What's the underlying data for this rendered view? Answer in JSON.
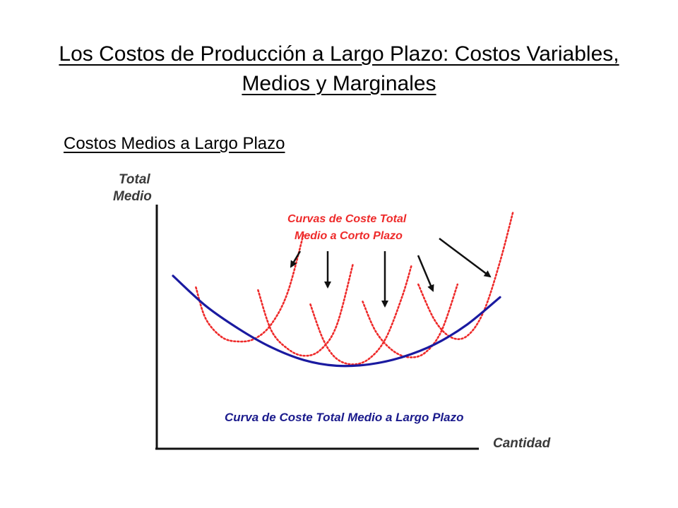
{
  "title": "Los Costos de Producción a Largo Plazo: Costos Variables, Medios y Marginales",
  "subtitle": "Costos Medios a Largo Plazo",
  "chart_data": {
    "type": "line",
    "ylabel_lines": [
      "Total",
      "Medio"
    ],
    "xlabel": "Cantidad",
    "short_run_label_lines": [
      "Curvas de Coste Total",
      "Medio a Corto Plazo"
    ],
    "long_run_label": "Curva de Coste Total Medio a Largo Plazo",
    "series": [
      {
        "name": "Curva de Coste Total Medio a Largo Plazo",
        "style": "solid",
        "color": "#1a1aa0",
        "x": [
          0,
          1,
          2,
          3,
          4,
          5,
          6,
          7,
          8,
          9,
          10
        ],
        "y": [
          9,
          6.9,
          5.3,
          4.0,
          3.1,
          2.7,
          2.8,
          3.3,
          4.2,
          5.6,
          7.5
        ]
      },
      {
        "name": "Curvas de Coste Total Medio a Corto Plazo",
        "style": "dotted",
        "color": "#ee2a2a",
        "curves": [
          {
            "x": [
              0.7,
              1.0,
              1.5,
              2.0,
              2.5,
              3.0,
              3.5,
              4.0
            ],
            "y": [
              8.2,
              6.0,
              4.7,
              4.4,
              4.6,
              5.6,
              7.8,
              12.0
            ]
          },
          {
            "x": [
              2.6,
              3.0,
              3.5,
              4.0,
              4.5,
              5.0,
              5.5
            ],
            "y": [
              8.0,
              5.2,
              3.9,
              3.4,
              3.8,
              5.5,
              9.8
            ]
          },
          {
            "x": [
              4.2,
              4.6,
              5.0,
              5.5,
              6.0,
              6.5,
              7.0,
              7.3
            ],
            "y": [
              7.0,
              4.5,
              3.2,
              2.8,
              3.2,
              4.6,
              7.5,
              9.8
            ]
          },
          {
            "x": [
              5.8,
              6.2,
              6.7,
              7.2,
              7.7,
              8.2,
              8.7
            ],
            "y": [
              7.2,
              5.1,
              3.8,
              3.3,
              3.6,
              5.1,
              8.4
            ]
          },
          {
            "x": [
              7.5,
              8.0,
              8.5,
              9.0,
              9.5,
              10.0,
              10.4
            ],
            "y": [
              8.4,
              5.9,
              4.7,
              4.8,
              6.5,
              10.0,
              13.5
            ]
          }
        ]
      }
    ],
    "arrows": 5,
    "grid": false,
    "colors": {
      "long_run": "#1a1aa0",
      "short_run": "#ee2a2a",
      "axes": "#111111",
      "arrows": "#111111"
    }
  }
}
